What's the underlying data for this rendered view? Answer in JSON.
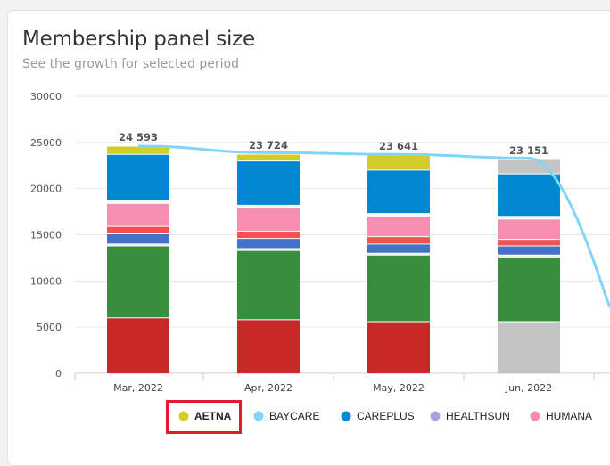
{
  "header": {
    "title": "Membership panel size",
    "subtitle": "See the growth for selected period"
  },
  "chart_data": {
    "type": "bar",
    "stacked": true,
    "categories": [
      "Mar, 2022",
      "Apr, 2022",
      "May, 2022",
      "Jun, 2022"
    ],
    "ylim": [
      0,
      30000
    ],
    "yticks": [
      0,
      5000,
      10000,
      15000,
      20000,
      25000,
      30000
    ],
    "grid": true,
    "totals": [
      24593,
      23724,
      23641,
      23151
    ],
    "total_labels": [
      "24 593",
      "23 724",
      "23 641",
      "23 151"
    ],
    "stack_order": [
      "red",
      "white",
      "green",
      "white",
      "blue",
      "red2",
      "pink",
      "white2",
      "CAREPLUS",
      "AETNA",
      "gray"
    ],
    "segments": [
      {
        "color": "#c62828",
        "values": [
          6000,
          5800,
          5600,
          0
        ]
      },
      {
        "color": "#c4c4c4",
        "values": [
          0,
          0,
          0,
          5600
        ]
      },
      {
        "color": "#ffffff",
        "values": [
          0,
          0,
          0,
          0
        ]
      },
      {
        "color": "#388e3c",
        "values": [
          7800,
          7500,
          7200,
          7000
        ]
      },
      {
        "color": "#e8e8e8",
        "values": [
          200,
          200,
          200,
          200
        ]
      },
      {
        "color": "#4472c4",
        "values": [
          1100,
          1100,
          1000,
          1000
        ]
      },
      {
        "color": "#ef5350",
        "values": [
          800,
          800,
          800,
          700
        ]
      },
      {
        "color": "#f48fb1",
        "values": [
          2500,
          2500,
          2200,
          2200
        ]
      },
      {
        "color": "#f5f5f5",
        "values": [
          300,
          300,
          300,
          300
        ]
      },
      {
        "color": "#0288d1",
        "values": [
          5000,
          4800,
          4700,
          4600
        ]
      },
      {
        "color": "#d4cc2c",
        "values": [
          893,
          724,
          1641,
          0
        ]
      },
      {
        "color": "#c4c4c4",
        "values": [
          0,
          0,
          0,
          1551
        ]
      }
    ],
    "line": {
      "name": "BAYCARE",
      "color": "#81d4fa",
      "values": [
        24600,
        23900,
        23700,
        23300
      ]
    },
    "legend": {
      "placement": "bottom",
      "items": [
        {
          "name": "AETNA",
          "color": "#d4cc2c"
        },
        {
          "name": "BAYCARE",
          "color": "#81d4fa"
        },
        {
          "name": "CAREPLUS",
          "color": "#0288d1"
        },
        {
          "name": "HEALTHSUN",
          "color": "#b39ddb"
        },
        {
          "name": "HUMANA",
          "color": "#f48fb1"
        }
      ],
      "highlighted": "AETNA"
    }
  }
}
